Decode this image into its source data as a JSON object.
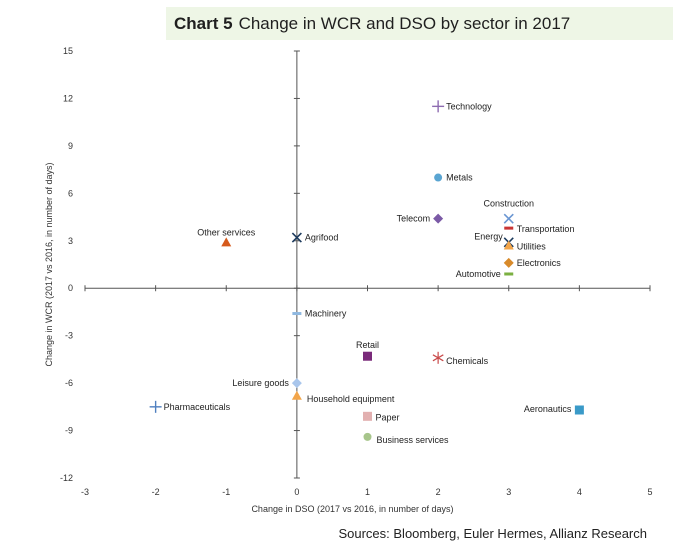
{
  "title": {
    "chart_no": "Chart 5",
    "text": "Change in WCR and DSO by sector in 2017"
  },
  "source": "Sources: Bloomberg, Euler Hermes, Allianz Research",
  "chart_data": {
    "type": "scatter",
    "title": "Change in WCR and DSO by sector in 2017",
    "xlabel": "Change in DSO (2017 vs 2016, in number of days)",
    "ylabel": "Change in WCR (2017 vs 2016, in number of days)",
    "xlim": [
      -3,
      5
    ],
    "ylim": [
      -12,
      15
    ],
    "xticks": [
      -3,
      -2,
      -1,
      0,
      1,
      2,
      3,
      4,
      5
    ],
    "yticks": [
      15,
      12,
      9,
      6,
      3,
      0,
      -3,
      -6,
      -9,
      -12
    ],
    "points": [
      {
        "name": "Technology",
        "x": 2,
        "y": 11.5,
        "marker": "plus",
        "color": "#8d6bb0",
        "label_pos": "right"
      },
      {
        "name": "Metals",
        "x": 2,
        "y": 7,
        "marker": "circle",
        "color": "#5aa5d2",
        "label_pos": "right"
      },
      {
        "name": "Telecom",
        "x": 2,
        "y": 4.4,
        "marker": "diamond",
        "color": "#7b5aa6",
        "label_pos": "left"
      },
      {
        "name": "Construction",
        "x": 3,
        "y": 4.4,
        "marker": "x",
        "color": "#6a96d2",
        "label_pos": "above"
      },
      {
        "name": "Transportation",
        "x": 3,
        "y": 3.8,
        "marker": "dash",
        "color": "#c93535",
        "label_pos": "right"
      },
      {
        "name": "Energy",
        "x": 3,
        "y": 2.9,
        "marker": "x",
        "color": "#1d3b5e",
        "label_pos": "left"
      },
      {
        "name": "Utilities",
        "x": 3,
        "y": 2.7,
        "marker": "triangle",
        "color": "#f2a54a",
        "label_pos": "right"
      },
      {
        "name": "Electronics",
        "x": 3,
        "y": 1.6,
        "marker": "diamond",
        "color": "#d88a2a",
        "label_pos": "right"
      },
      {
        "name": "Automotive",
        "x": 3,
        "y": 0.9,
        "marker": "dash",
        "color": "#7bb041",
        "label_pos": "left"
      },
      {
        "name": "Other services",
        "x": -1,
        "y": 2.9,
        "marker": "triangle",
        "color": "#d65a1c",
        "label_pos": "above"
      },
      {
        "name": "Agrifood",
        "x": 0,
        "y": 3.2,
        "marker": "x",
        "color": "#1d3b5e",
        "label_pos": "right"
      },
      {
        "name": "Machinery",
        "x": 0,
        "y": -1.6,
        "marker": "dash",
        "color": "#8fb8e0",
        "label_pos": "right"
      },
      {
        "name": "Retail",
        "x": 1,
        "y": -4.3,
        "marker": "square",
        "color": "#7a2a7a",
        "label_pos": "above"
      },
      {
        "name": "Chemicals",
        "x": 2,
        "y": -4.4,
        "marker": "star",
        "color": "#c94a4a",
        "label_pos": "right"
      },
      {
        "name": "Leisure goods",
        "x": 0,
        "y": -6,
        "marker": "diamond",
        "color": "#a9c6ec",
        "label_pos": "left"
      },
      {
        "name": "Household equipment",
        "x": 0,
        "y": -6.8,
        "marker": "triangle",
        "color": "#f2a54a",
        "label_pos": "right"
      },
      {
        "name": "Pharmaceuticals",
        "x": -2,
        "y": -7.5,
        "marker": "plus",
        "color": "#4f7fbf",
        "label_pos": "right"
      },
      {
        "name": "Aeronautics",
        "x": 4,
        "y": -7.7,
        "marker": "square",
        "color": "#3a9ac8",
        "label_pos": "left"
      },
      {
        "name": "Paper",
        "x": 1,
        "y": -8.1,
        "marker": "square",
        "color": "#e2b0b0",
        "label_pos": "right"
      },
      {
        "name": "Business services",
        "x": 1,
        "y": -9.4,
        "marker": "circle",
        "color": "#a7c58b",
        "label_pos": "right"
      }
    ]
  }
}
